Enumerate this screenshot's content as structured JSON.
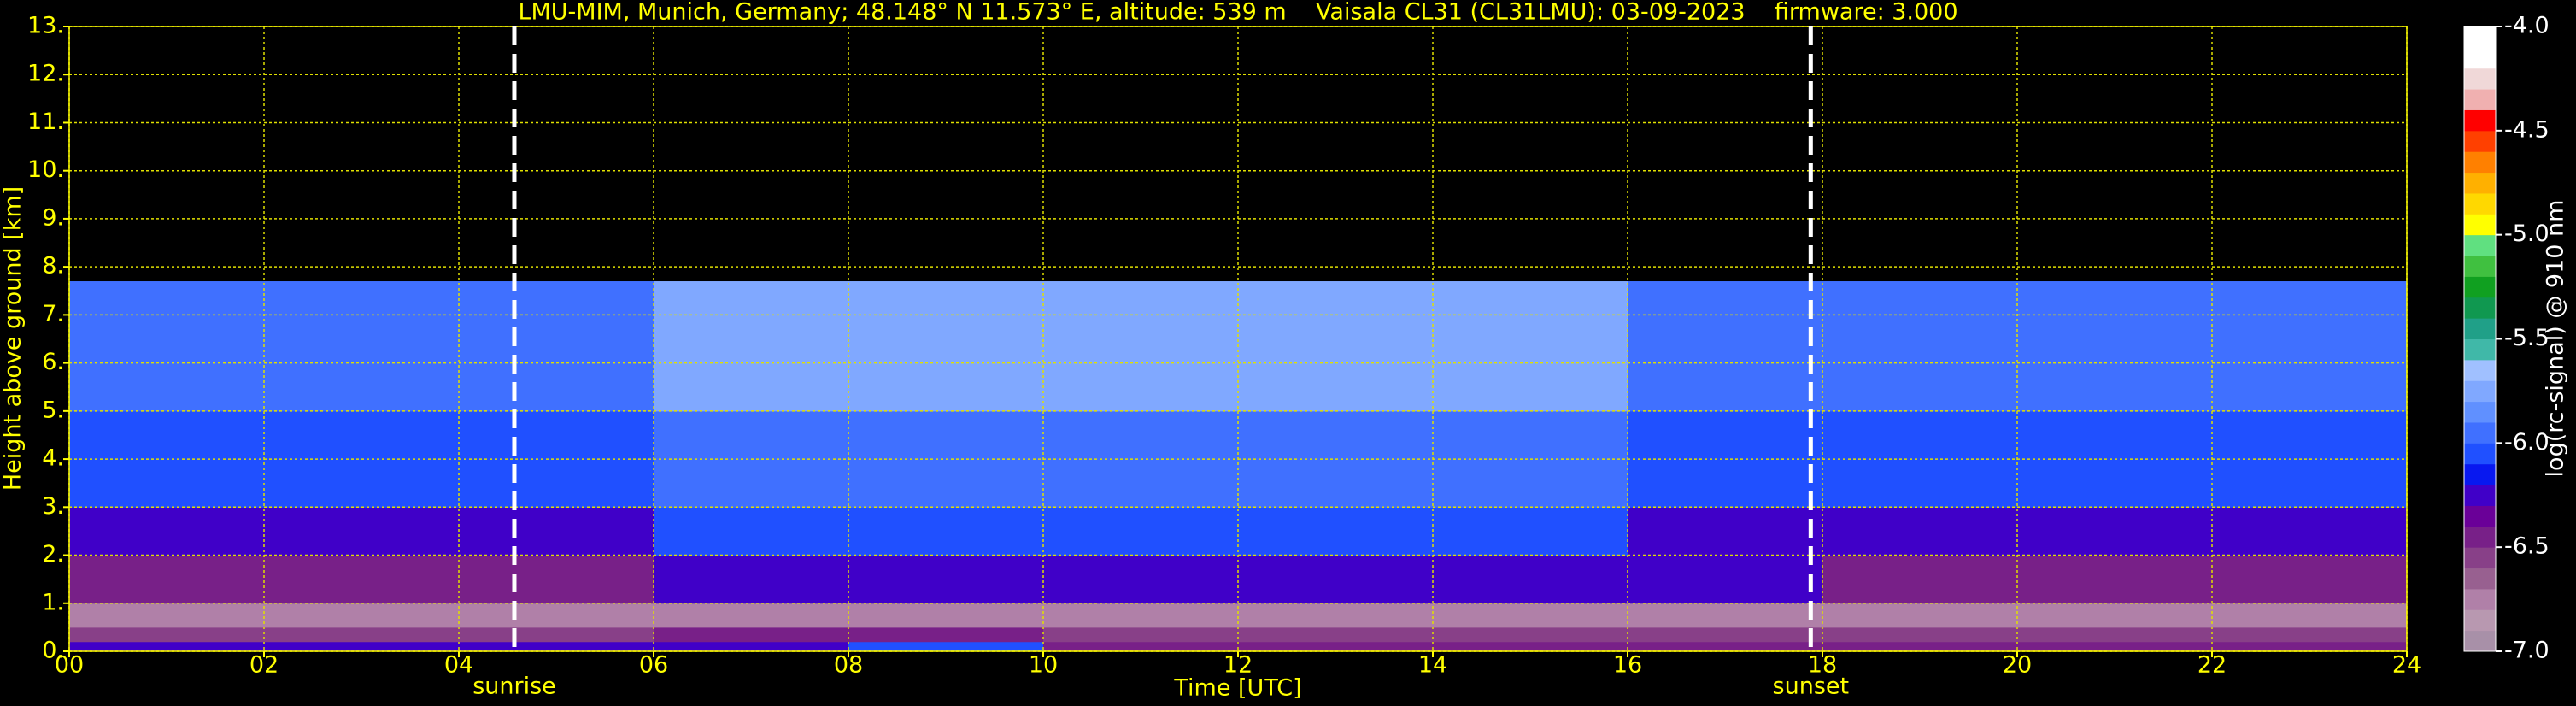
{
  "chart_data": {
    "type": "heatmap",
    "title": "LMU-MIM, Munich, Germany; 48.148° N 11.573° E, altitude: 539 m    Vaisala CL31 (CL31LMU): 03-09-2023    firmware: 3.000",
    "xlabel": "Time [UTC]",
    "ylabel": "Height above ground [km]",
    "xlim": [
      0,
      24
    ],
    "ylim": [
      0,
      13
    ],
    "xticks": [
      {
        "value": 0,
        "label": "00"
      },
      {
        "value": 2,
        "label": "02"
      },
      {
        "value": 4,
        "label": "04"
      },
      {
        "value": 6,
        "label": "06"
      },
      {
        "value": 8,
        "label": "08"
      },
      10,
      12,
      14,
      16,
      18,
      20,
      22,
      24
    ],
    "yticks": [
      {
        "value": 0,
        "label": "0."
      },
      {
        "value": 1,
        "label": "1."
      },
      {
        "value": 2,
        "label": "2."
      },
      {
        "value": 3,
        "label": "3."
      },
      {
        "value": 4,
        "label": "4."
      },
      {
        "value": 5,
        "label": "5."
      },
      {
        "value": 6,
        "label": "6."
      },
      {
        "value": 7,
        "label": "7."
      },
      {
        "value": 8,
        "label": "8."
      },
      {
        "value": 9,
        "label": "9."
      },
      {
        "value": 10,
        "label": "10."
      },
      {
        "value": 11,
        "label": "11."
      },
      {
        "value": 12,
        "label": "12."
      },
      {
        "value": 13,
        "label": "13."
      }
    ],
    "grid": true,
    "grid_color": "#e0e000",
    "x_edges": [
      0,
      2,
      4,
      6,
      8,
      10,
      12,
      14,
      16,
      18,
      20,
      22,
      24
    ],
    "y_edges": [
      0,
      0.2,
      0.5,
      1,
      2,
      3,
      5,
      7.7
    ],
    "z": [
      [
        -6.2,
        -6.2,
        -6.2,
        -6.2,
        -6.1,
        -6.4,
        -6.5,
        -6.5,
        -6.5,
        -6.5,
        -6.5,
        -6.5
      ],
      [
        -6.6,
        -6.6,
        -6.6,
        -6.5,
        -6.5,
        -6.6,
        -6.6,
        -6.6,
        -6.6,
        -6.6,
        -6.6,
        -6.6
      ],
      [
        -6.8,
        -6.8,
        -6.8,
        -6.8,
        -6.8,
        -6.8,
        -6.8,
        -6.8,
        -6.8,
        -6.8,
        -6.8,
        -6.8
      ],
      [
        -6.4,
        -6.4,
        -6.4,
        -6.3,
        -6.3,
        -6.2,
        -6.2,
        -6.2,
        -6.3,
        -6.4,
        -6.4,
        -6.4
      ],
      [
        -6.2,
        -6.2,
        -6.2,
        -6.1,
        -6.1,
        -6.1,
        -6.1,
        -6.1,
        -6.2,
        -6.2,
        -6.2,
        -6.2
      ],
      [
        -6.1,
        -6.1,
        -6.1,
        -6.0,
        -6.0,
        -6.0,
        -6.0,
        -6.0,
        -6.1,
        -6.1,
        -6.1,
        -6.1
      ],
      [
        -5.9,
        -5.9,
        -5.9,
        -5.8,
        -5.8,
        -5.8,
        -5.8,
        -5.8,
        -5.9,
        -5.9,
        -5.9,
        -5.9
      ]
    ],
    "markers": [
      {
        "label": "sunrise",
        "x": 4.57
      },
      {
        "label": "sunset",
        "x": 17.88
      }
    ],
    "colorbar": {
      "label": "log(rc-signal) @ 910 nm",
      "clim": [
        -7,
        -4
      ],
      "ticks": [
        {
          "value": -7,
          "label": "-7.0"
        },
        {
          "value": -6.5,
          "label": "-6.5"
        },
        {
          "value": -6,
          "label": "-6.0"
        },
        -5.5,
        {
          "value": -5,
          "label": "-5.0"
        },
        -4.5,
        {
          "value": -4,
          "label": "-4.0"
        }
      ],
      "colors": [
        "#a890a8",
        "#b898b0",
        "#b080a8",
        "#986090",
        "#884088",
        "#782088",
        "#6a0098",
        "#4000c8",
        "#0818f0",
        "#2050ff",
        "#4070ff",
        "#6090ff",
        "#80a8ff",
        "#a0c0ff",
        "#40b8a8",
        "#20a088",
        "#109850",
        "#10a020",
        "#40c040",
        "#60e080",
        "#ffff00",
        "#ffd800",
        "#ffb000",
        "#ff8000",
        "#ff4000",
        "#ff0000",
        "#f0b0b0",
        "#f0d8d8",
        "#ffffff",
        "#ffffff"
      ]
    }
  }
}
